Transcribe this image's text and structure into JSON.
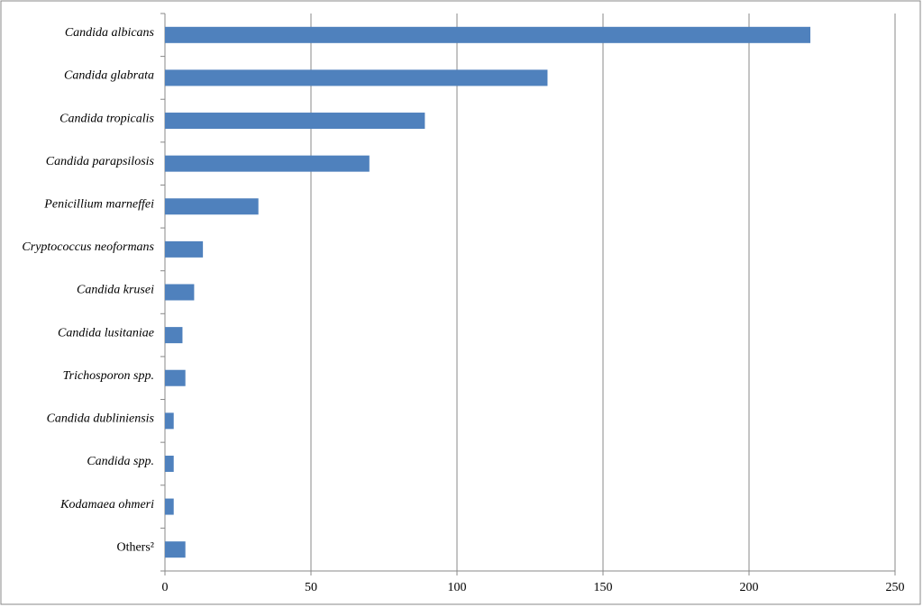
{
  "chart_data": {
    "type": "bar",
    "orientation": "horizontal",
    "categories": [
      "Candida albicans",
      "Candida glabrata",
      "Candida tropicalis",
      "Candida parapsilosis",
      "Penicillium marneffei",
      "Cryptococcus neoformans",
      "Candida krusei",
      "Candida lusitaniae",
      "Trichosporon spp.",
      "Candida dubliniensis",
      "Candida spp.",
      "Kodamaea ohmeri",
      "Others²"
    ],
    "values": [
      221,
      131,
      89,
      70,
      32,
      13,
      10,
      6,
      7,
      3,
      3,
      3,
      7
    ],
    "color": "#4f81bd",
    "xlim": [
      0,
      250
    ],
    "xticks": [
      0,
      50,
      100,
      150,
      200,
      250
    ],
    "grid": true
  }
}
